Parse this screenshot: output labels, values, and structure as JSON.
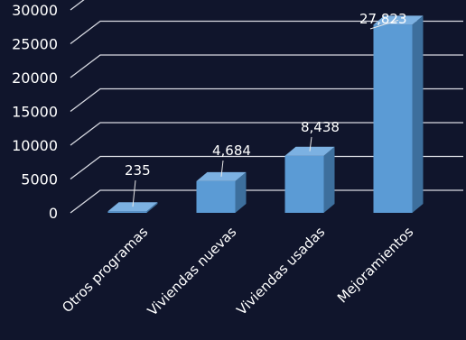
{
  "chart_data": {
    "type": "bar",
    "style": "3d-column",
    "categories": [
      "Otros programas",
      "Viviendas nuevas",
      "Viviendas usadas",
      "Mejoramientos"
    ],
    "values": [
      235,
      4684,
      8438,
      27823
    ],
    "value_labels": [
      "235",
      "4,684",
      "8,438",
      "27,823"
    ],
    "y_ticks": [
      0,
      5000,
      10000,
      15000,
      20000,
      25000,
      30000
    ],
    "y_tick_labels": [
      "0",
      "5000",
      "10000",
      "15000",
      "20000",
      "25000",
      "30000"
    ],
    "ylim": [
      0,
      30000
    ],
    "grid": true,
    "legend": "none",
    "title": "",
    "xlabel": "",
    "ylabel": ""
  },
  "colors": {
    "background": "#10152c",
    "bar_front": "#5b9bd5",
    "bar_top": "#7cb1e2",
    "bar_side": "#3d6f9d",
    "grid": "#d9dbe3",
    "text": "#ffffff"
  }
}
